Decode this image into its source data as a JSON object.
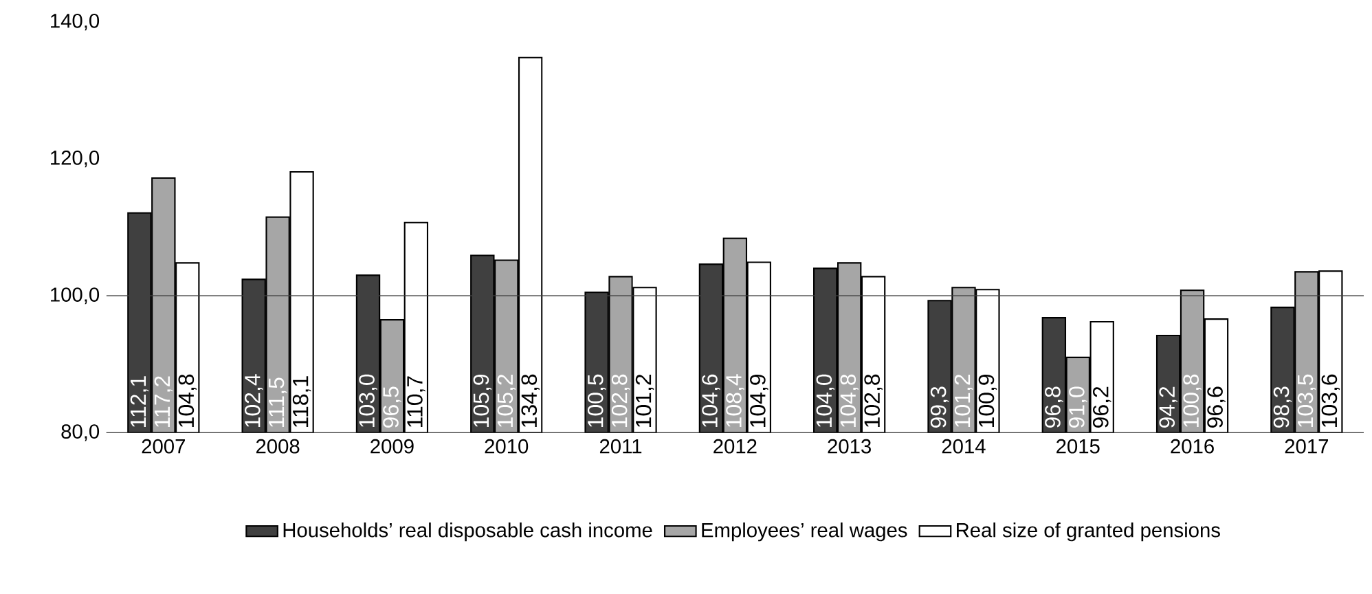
{
  "chart_data": {
    "type": "bar",
    "categories": [
      "2007",
      "2008",
      "2009",
      "2010",
      "2011",
      "2012",
      "2013",
      "2014",
      "2015",
      "2016",
      "2017"
    ],
    "series": [
      {
        "name": "Households’ real disposable cash income",
        "color": "#404040",
        "values": [
          112.1,
          102.4,
          103.0,
          105.9,
          100.5,
          104.6,
          104.0,
          99.3,
          96.8,
          94.2,
          98.3
        ],
        "value_labels": [
          "112,1",
          "102,4",
          "103,0",
          "105,9",
          "100,5",
          "104,6",
          "104,0",
          "99,3",
          "96,8",
          "94,2",
          "98,3"
        ]
      },
      {
        "name": "Employees’ real wages",
        "color": "#a6a6a6",
        "values": [
          117.2,
          111.5,
          96.5,
          105.2,
          102.8,
          108.4,
          104.8,
          101.2,
          91.0,
          100.8,
          103.5
        ],
        "value_labels": [
          "117,2",
          "111,5",
          "96,5",
          "105,2",
          "102,8",
          "108,4",
          "104,8",
          "101,2",
          "91,0",
          "100,8",
          "103,5"
        ]
      },
      {
        "name": "Real size of granted pensions",
        "color": "#ffffff",
        "values": [
          104.8,
          118.1,
          110.7,
          134.8,
          101.2,
          104.9,
          102.8,
          100.9,
          96.2,
          96.6,
          103.6
        ],
        "value_labels": [
          "104,8",
          "118,1",
          "110,7",
          "134,8",
          "101,2",
          "104,9",
          "102,8",
          "100,9",
          "96,2",
          "96,6",
          "103,6"
        ]
      }
    ],
    "ylim": [
      80,
      140
    ],
    "yticks": [
      {
        "value": 80,
        "label": "80,0"
      },
      {
        "value": 100,
        "label": "100,0"
      },
      {
        "value": 120,
        "label": "120,0"
      },
      {
        "value": 140,
        "label": "140,0"
      }
    ],
    "ref_lines": [
      {
        "axis": "y",
        "value": 100,
        "color": "#404040"
      }
    ],
    "grid": false,
    "legend": "bottom"
  }
}
